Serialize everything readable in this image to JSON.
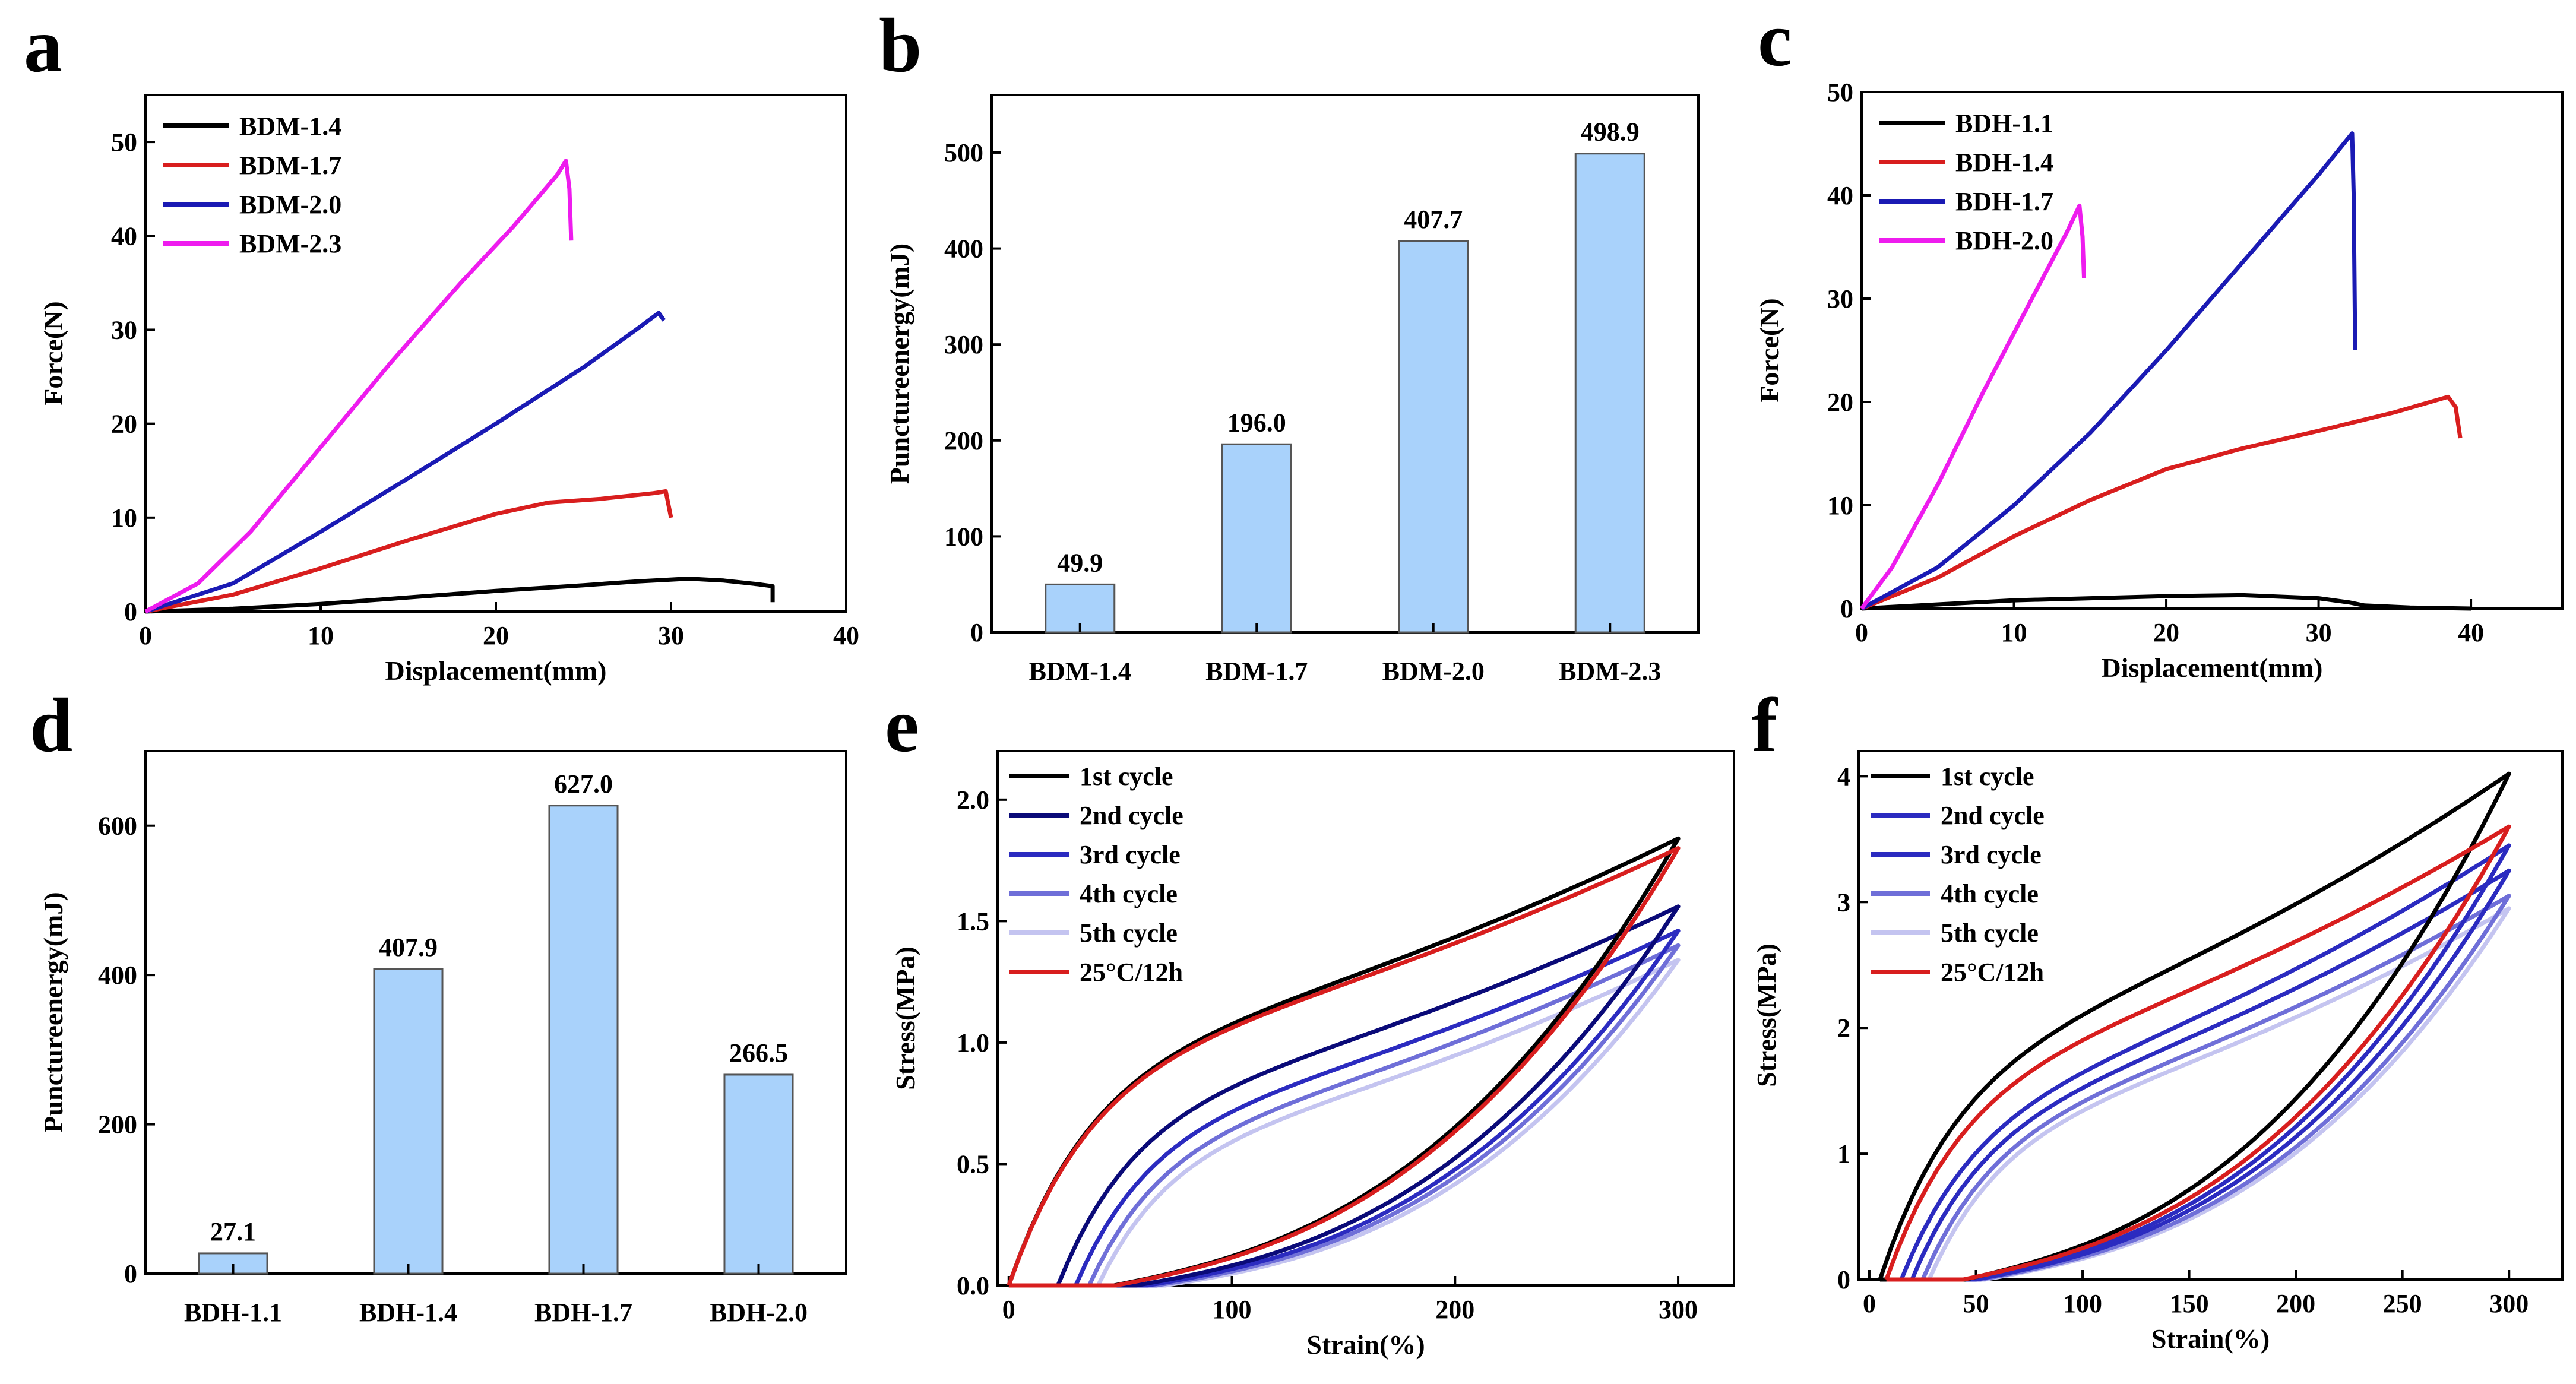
{
  "colors": {
    "black": "#000000",
    "red": "#d81e1e",
    "blue": "#1a1ab4",
    "magenta": "#ee1cee",
    "bar_fill": "#a9d2fb",
    "bar_stroke": "#555555",
    "cycle1": "#000000",
    "cycle2": "#0a0a78",
    "cycle3": "#2b2bc0",
    "cycle4": "#6f6fd8",
    "cycle5": "#c4c4f0",
    "cycle_red": "#d81e1e"
  },
  "chart_data": [
    {
      "panel": "a",
      "type": "line",
      "xlabel": "Displacement(mm)",
      "ylabel": "Force(N)",
      "xlim": [
        0,
        40
      ],
      "ylim": [
        0,
        55
      ],
      "xticks": [
        "0",
        "10",
        "20",
        "30",
        "40"
      ],
      "yticks": [
        "0",
        "10",
        "20",
        "30",
        "40",
        "50"
      ],
      "legend_position": "top-left",
      "series": [
        {
          "name": "BDM-1.4",
          "color": "black",
          "x": [
            0,
            5,
            10,
            15,
            20,
            25,
            28,
            31,
            33,
            35,
            35.8,
            35.8
          ],
          "y": [
            0,
            0.3,
            0.8,
            1.5,
            2.2,
            2.8,
            3.2,
            3.5,
            3.3,
            2.9,
            2.7,
            1.0
          ]
        },
        {
          "name": "BDM-1.7",
          "color": "red",
          "x": [
            0,
            5,
            10,
            15,
            20,
            23,
            26,
            29,
            29.7,
            30.0
          ],
          "y": [
            0,
            1.8,
            4.6,
            7.6,
            10.4,
            11.6,
            12.0,
            12.6,
            12.8,
            10.0
          ]
        },
        {
          "name": "BDM-2.0",
          "color": "blue",
          "x": [
            0,
            5,
            10,
            15,
            20,
            25,
            28,
            29.3,
            29.6
          ],
          "y": [
            0,
            3.0,
            8.5,
            14.2,
            20.0,
            26.0,
            30.0,
            31.8,
            31.0
          ]
        },
        {
          "name": "BDM-2.3",
          "color": "magenta",
          "x": [
            0,
            3,
            6,
            10,
            14,
            18,
            21,
            23.5,
            24.0,
            24.2,
            24.3
          ],
          "y": [
            0,
            3.0,
            8.5,
            17.5,
            26.5,
            35.0,
            41.0,
            46.5,
            48.0,
            45.0,
            39.5
          ]
        }
      ]
    },
    {
      "panel": "b",
      "type": "bar",
      "ylabel": "Punctureenergy(mJ)",
      "ylim": [
        0,
        560
      ],
      "yticks": [
        "0",
        "100",
        "200",
        "300",
        "400",
        "500"
      ],
      "categories": [
        "BDM-1.4",
        "BDM-1.7",
        "BDM-2.0",
        "BDM-2.3"
      ],
      "values": [
        49.9,
        196.0,
        407.7,
        498.9
      ],
      "value_labels": [
        "49.9",
        "196.0",
        "407.7",
        "498.9"
      ]
    },
    {
      "panel": "c",
      "type": "line",
      "xlabel": "Displacement(mm)",
      "ylabel": "Force(N)",
      "xlim": [
        0,
        46
      ],
      "ylim": [
        0,
        50
      ],
      "xticks": [
        "0",
        "10",
        "20",
        "30",
        "40"
      ],
      "yticks": [
        "0",
        "10",
        "20",
        "30",
        "40",
        "50"
      ],
      "legend_position": "top-left",
      "series": [
        {
          "name": "BDH-1.1",
          "color": "black",
          "x": [
            0,
            5,
            10,
            15,
            20,
            25,
            30,
            32,
            33,
            36,
            40
          ],
          "y": [
            0,
            0.4,
            0.8,
            1.0,
            1.2,
            1.3,
            1.0,
            0.6,
            0.3,
            0.1,
            0.0
          ]
        },
        {
          "name": "BDH-1.4",
          "color": "red",
          "x": [
            0,
            5,
            10,
            15,
            20,
            25,
            30,
            35,
            38.5,
            39.0,
            39.3
          ],
          "y": [
            0,
            3.0,
            7.0,
            10.5,
            13.5,
            15.5,
            17.2,
            19.0,
            20.5,
            19.5,
            16.5
          ]
        },
        {
          "name": "BDH-1.7",
          "color": "blue",
          "x": [
            0,
            5,
            10,
            15,
            20,
            25,
            30,
            32.2,
            32.3,
            32.4
          ],
          "y": [
            0,
            4.0,
            10.0,
            17.0,
            25.0,
            33.5,
            42.0,
            46.0,
            40.0,
            25.0
          ]
        },
        {
          "name": "BDH-2.0",
          "color": "magenta",
          "x": [
            0,
            2,
            5,
            8,
            11,
            13.5,
            14.3,
            14.5,
            14.6
          ],
          "y": [
            0,
            4.0,
            12.0,
            21.0,
            29.5,
            36.5,
            39.0,
            36.0,
            32.0
          ]
        }
      ]
    },
    {
      "panel": "d",
      "type": "bar",
      "ylabel": "Punctureenergy(mJ)",
      "ylim": [
        0,
        700
      ],
      "yticks": [
        "0",
        "200",
        "400",
        "600"
      ],
      "categories": [
        "BDH-1.1",
        "BDH-1.4",
        "BDH-1.7",
        "BDH-2.0"
      ],
      "values": [
        27.1,
        407.9,
        627.0,
        266.5
      ],
      "value_labels": [
        "27.1",
        "407.9",
        "627.0",
        "266.5"
      ]
    },
    {
      "panel": "e",
      "type": "line",
      "xlabel": "Strain(%)",
      "ylabel": "Stress(MPa)",
      "xlim": [
        -5,
        325
      ],
      "ylim": [
        0,
        2.2
      ],
      "xticks": [
        "0",
        "100",
        "200",
        "300"
      ],
      "yticks": [
        "0.0",
        "0.5",
        "1.0",
        "1.5",
        "2.0"
      ],
      "legend_position": "top-left",
      "series": [
        {
          "name": "1st cycle",
          "color": "cycle1",
          "peak": 1.84,
          "start": 0,
          "ret_start": 47,
          "plateau": 1.0
        },
        {
          "name": "2nd cycle",
          "color": "cycle2",
          "peak": 1.56,
          "start": 22,
          "ret_start": 57,
          "plateau": 0.8
        },
        {
          "name": "3rd cycle",
          "color": "cycle3",
          "peak": 1.46,
          "start": 30,
          "ret_start": 62,
          "plateau": 0.72
        },
        {
          "name": "4th cycle",
          "color": "cycle4",
          "peak": 1.4,
          "start": 36,
          "ret_start": 66,
          "plateau": 0.66
        },
        {
          "name": "5th cycle",
          "color": "cycle5",
          "peak": 1.34,
          "start": 40,
          "ret_start": 70,
          "plateau": 0.62
        },
        {
          "name": "25°C/12h",
          "color": "cycle_red",
          "peak": 1.8,
          "start": 0,
          "ret_start": 48,
          "plateau": 0.99
        }
      ]
    },
    {
      "panel": "f",
      "type": "line",
      "xlabel": "Strain(%)",
      "ylabel": "Stress(MPa)",
      "xlim": [
        -5,
        325
      ],
      "ylim": [
        0,
        4.2
      ],
      "xticks": [
        "0",
        "50",
        "100",
        "150",
        "200",
        "250",
        "300"
      ],
      "yticks": [
        "0",
        "1",
        "2",
        "3",
        "4"
      ],
      "legend_position": "top-left",
      "series": [
        {
          "name": "1st cycle",
          "color": "cycle1",
          "peak": 4.02,
          "start": 5,
          "ret_start": 45,
          "plateau": 1.9
        },
        {
          "name": "2nd cycle",
          "color": "cycle3",
          "peak": 3.45,
          "start": 15,
          "ret_start": 48,
          "plateau": 1.5
        },
        {
          "name": "3rd cycle",
          "color": "cycle3",
          "peak": 3.25,
          "start": 20,
          "ret_start": 50,
          "plateau": 1.42
        },
        {
          "name": "4th cycle",
          "color": "cycle4",
          "peak": 3.05,
          "start": 25,
          "ret_start": 52,
          "plateau": 1.35
        },
        {
          "name": "5th cycle",
          "color": "cycle5",
          "peak": 2.95,
          "start": 28,
          "ret_start": 54,
          "plateau": 1.3
        },
        {
          "name": "25°C/12h",
          "color": "cycle_red",
          "peak": 3.6,
          "start": 8,
          "ret_start": 44,
          "plateau": 1.75
        }
      ]
    }
  ]
}
